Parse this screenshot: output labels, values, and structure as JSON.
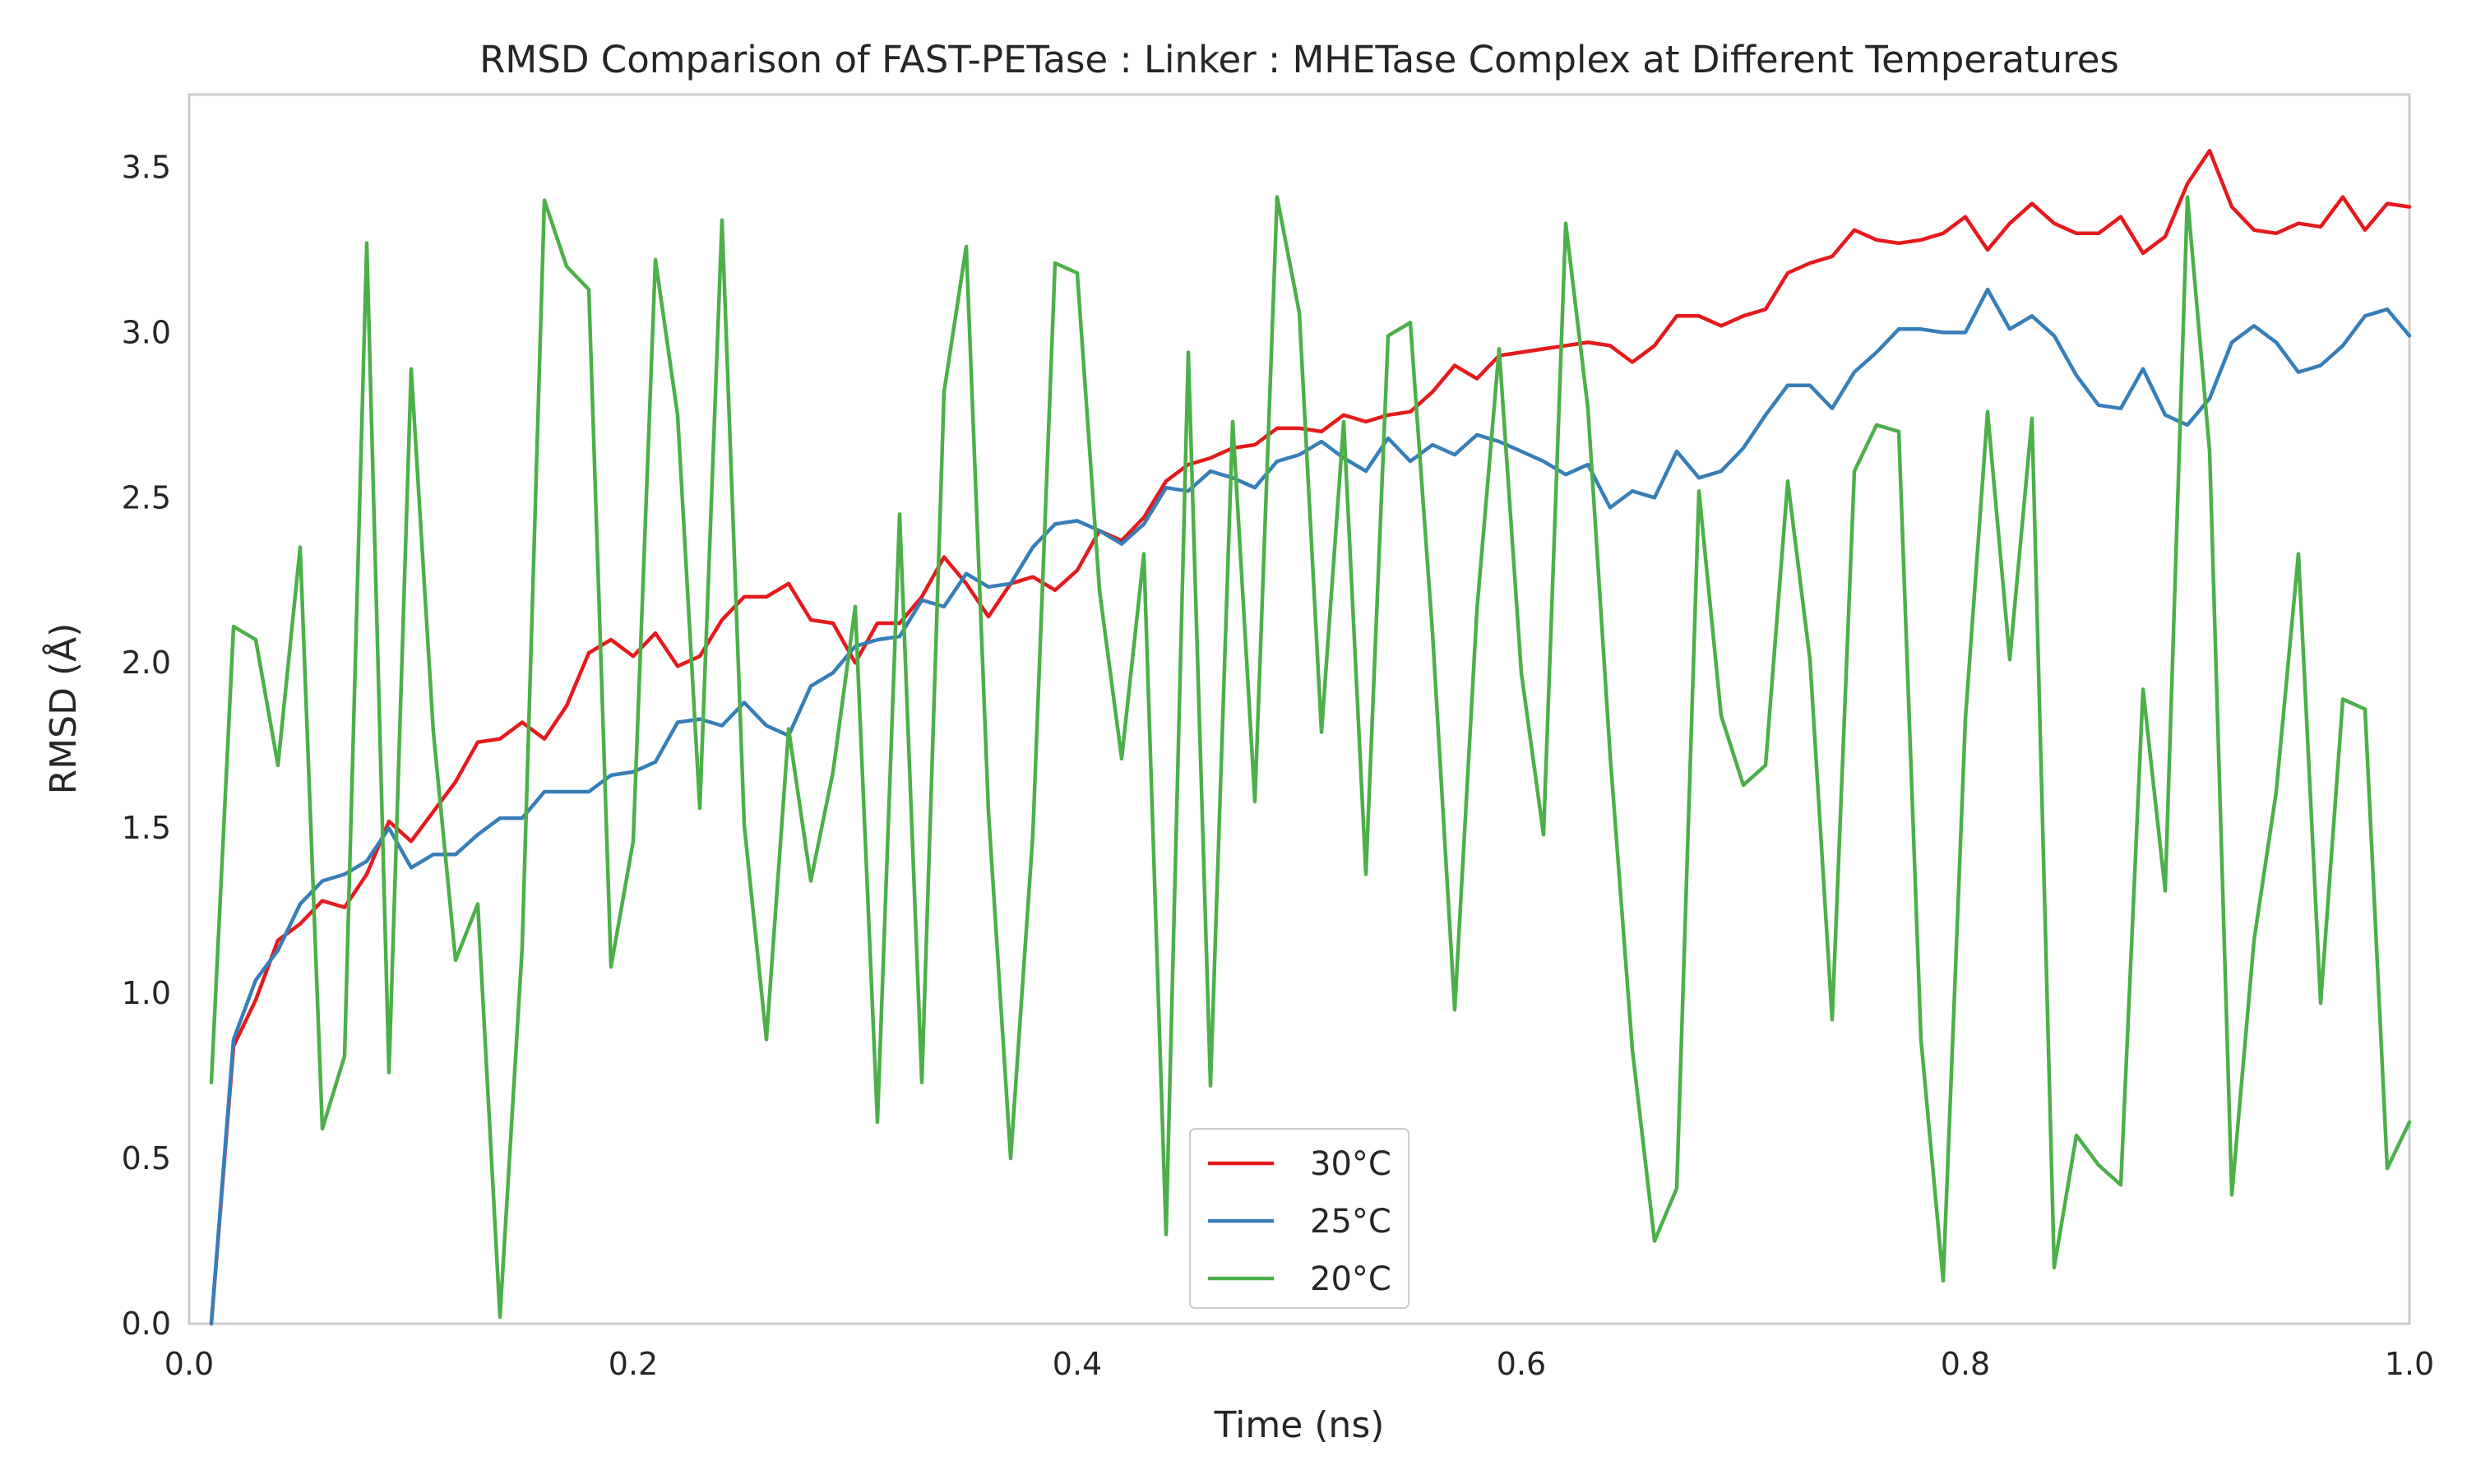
{
  "chart_data": {
    "type": "line",
    "title": "RMSD Comparison of FAST-PETase : Linker : MHETase Complex at Different Temperatures",
    "xlabel": "Time (ns)",
    "ylabel": "RMSD (Å)",
    "xlim": [
      0.0,
      1.0
    ],
    "ylim": [
      0.0,
      3.72
    ],
    "xticks": [
      0.0,
      0.2,
      0.4,
      0.6,
      0.8,
      1.0
    ],
    "xtick_labels": [
      "0.0",
      "0.2",
      "0.4",
      "0.6",
      "0.8",
      "1.0"
    ],
    "yticks": [
      0.0,
      0.5,
      1.0,
      1.5,
      2.0,
      2.5,
      3.0,
      3.5
    ],
    "ytick_labels": [
      "0.0",
      "0.5",
      "1.0",
      "1.5",
      "2.0",
      "2.5",
      "3.0",
      "3.5"
    ],
    "grid": false,
    "legend_position": "bottom-center",
    "x": [
      0.01,
      0.02,
      0.03,
      0.04,
      0.05,
      0.06,
      0.07,
      0.08,
      0.09,
      0.1,
      0.11,
      0.12,
      0.13,
      0.14,
      0.15,
      0.16,
      0.17,
      0.18,
      0.19,
      0.2,
      0.21,
      0.22,
      0.23,
      0.24,
      0.25,
      0.26,
      0.27,
      0.28,
      0.29,
      0.3,
      0.31,
      0.32,
      0.33,
      0.34,
      0.35,
      0.36,
      0.37,
      0.38,
      0.39,
      0.4,
      0.41,
      0.42,
      0.43,
      0.44,
      0.45,
      0.46,
      0.47,
      0.48,
      0.49,
      0.5,
      0.51,
      0.52,
      0.53,
      0.54,
      0.55,
      0.56,
      0.57,
      0.58,
      0.59,
      0.6,
      0.61,
      0.62,
      0.63,
      0.64,
      0.65,
      0.66,
      0.67,
      0.68,
      0.69,
      0.7,
      0.71,
      0.72,
      0.73,
      0.74,
      0.75,
      0.76,
      0.77,
      0.78,
      0.79,
      0.8,
      0.81,
      0.82,
      0.83,
      0.84,
      0.85,
      0.86,
      0.87,
      0.88,
      0.89,
      0.9,
      0.91,
      0.92,
      0.93,
      0.94,
      0.95,
      0.96,
      0.97,
      0.98,
      0.99,
      1.0
    ],
    "series": [
      {
        "name": "30°C",
        "color": "#e41a1c",
        "values": [
          0.0,
          0.84,
          0.98,
          1.16,
          1.21,
          1.28,
          1.26,
          1.36,
          1.52,
          1.46,
          1.55,
          1.64,
          1.76,
          1.77,
          1.82,
          1.77,
          1.87,
          2.03,
          2.07,
          2.02,
          2.09,
          1.99,
          2.02,
          2.13,
          2.2,
          2.2,
          2.24,
          2.13,
          2.12,
          2.0,
          2.12,
          2.12,
          2.2,
          2.32,
          2.24,
          2.14,
          2.24,
          2.26,
          2.22,
          2.28,
          2.4,
          2.37,
          2.44,
          2.55,
          2.6,
          2.62,
          2.65,
          2.66,
          2.71,
          2.71,
          2.7,
          2.75,
          2.73,
          2.75,
          2.76,
          2.82,
          2.9,
          2.86,
          2.93,
          2.94,
          2.95,
          2.96,
          2.97,
          2.96,
          2.91,
          2.96,
          3.05,
          3.05,
          3.02,
          3.05,
          3.07,
          3.18,
          3.21,
          3.23,
          3.31,
          3.28,
          3.27,
          3.28,
          3.3,
          3.35,
          3.25,
          3.33,
          3.39,
          3.33,
          3.3,
          3.3,
          3.35,
          3.24,
          3.29,
          3.45,
          3.55,
          3.38,
          3.31,
          3.3,
          3.33,
          3.32,
          3.41,
          3.31,
          3.39,
          3.38
        ]
      },
      {
        "name": "25°C",
        "color": "#377eb8",
        "values": [
          0.0,
          0.86,
          1.04,
          1.13,
          1.27,
          1.34,
          1.36,
          1.4,
          1.5,
          1.38,
          1.42,
          1.42,
          1.48,
          1.53,
          1.53,
          1.61,
          1.61,
          1.61,
          1.66,
          1.67,
          1.7,
          1.82,
          1.83,
          1.81,
          1.88,
          1.81,
          1.78,
          1.93,
          1.97,
          2.05,
          2.07,
          2.08,
          2.19,
          2.17,
          2.27,
          2.23,
          2.24,
          2.35,
          2.42,
          2.43,
          2.4,
          2.36,
          2.42,
          2.53,
          2.52,
          2.58,
          2.56,
          2.53,
          2.61,
          2.63,
          2.67,
          2.62,
          2.58,
          2.68,
          2.61,
          2.66,
          2.63,
          2.69,
          2.67,
          2.64,
          2.61,
          2.57,
          2.6,
          2.47,
          2.52,
          2.5,
          2.64,
          2.56,
          2.58,
          2.65,
          2.75,
          2.84,
          2.84,
          2.77,
          2.88,
          2.94,
          3.01,
          3.01,
          3.0,
          3.0,
          3.13,
          3.01,
          3.05,
          2.99,
          2.87,
          2.78,
          2.77,
          2.89,
          2.75,
          2.72,
          2.8,
          2.97,
          3.02,
          2.97,
          2.88,
          2.9,
          2.96,
          3.05,
          3.07,
          2.99
        ]
      },
      {
        "name": "20°C",
        "color": "#4daf4a",
        "values": [
          0.73,
          2.11,
          2.07,
          1.69,
          2.35,
          0.59,
          0.81,
          3.27,
          0.76,
          2.89,
          1.79,
          1.1,
          1.27,
          0.02,
          1.14,
          3.4,
          3.2,
          3.13,
          1.08,
          1.46,
          3.22,
          2.75,
          1.56,
          3.34,
          1.51,
          0.86,
          1.8,
          1.34,
          1.67,
          2.17,
          0.61,
          2.45,
          0.73,
          2.82,
          3.26,
          1.55,
          0.5,
          1.48,
          3.21,
          3.18,
          2.22,
          1.71,
          2.33,
          0.27,
          2.94,
          0.72,
          2.73,
          1.58,
          3.41,
          3.06,
          1.79,
          2.73,
          1.36,
          2.99,
          3.03,
          2.09,
          0.95,
          2.16,
          2.95,
          1.97,
          1.48,
          3.33,
          2.77,
          1.72,
          0.83,
          0.25,
          0.41,
          2.52,
          1.84,
          1.63,
          1.69,
          2.55,
          2.01,
          0.92,
          2.58,
          2.72,
          2.7,
          0.86,
          0.13,
          1.83,
          2.76,
          2.01,
          2.74,
          0.17,
          0.57,
          0.48,
          0.42,
          1.92,
          1.31,
          3.41,
          2.64,
          0.39,
          1.16,
          1.61,
          2.33,
          0.97,
          1.89,
          1.86,
          0.47,
          0.61
        ]
      }
    ]
  }
}
